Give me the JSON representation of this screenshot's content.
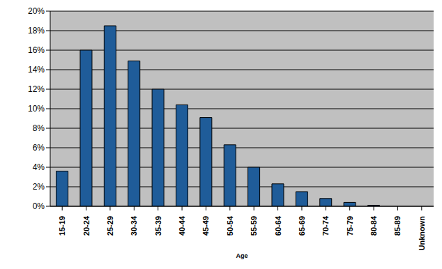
{
  "chart_data": {
    "type": "bar",
    "x_label": "Age",
    "categories": [
      "15-19",
      "20-24",
      "25-29",
      "30-34",
      "35-39",
      "40-44",
      "45-49",
      "50-54",
      "55-59",
      "60-64",
      "65-69",
      "70-74",
      "75-79",
      "80-84",
      "85-89",
      "Unknown"
    ],
    "values": [
      3.6,
      16.0,
      18.5,
      14.9,
      12.0,
      10.4,
      9.1,
      6.3,
      4.0,
      2.3,
      1.5,
      0.8,
      0.4,
      0.1,
      0,
      0
    ],
    "color": "#1f5c99",
    "ylim": [
      0,
      20
    ],
    "yticks": [
      {
        "value": 0,
        "label": "0%"
      },
      {
        "value": 2,
        "label": "2%"
      },
      {
        "value": 4,
        "label": "4%"
      },
      {
        "value": 6,
        "label": "6%"
      },
      {
        "value": 8,
        "label": "8%"
      },
      {
        "value": 10,
        "label": "10%"
      },
      {
        "value": 12,
        "label": "12%"
      },
      {
        "value": 14,
        "label": "14%"
      },
      {
        "value": 16,
        "label": "16%"
      },
      {
        "value": 18,
        "label": "18%"
      },
      {
        "value": 20,
        "label": "20%"
      }
    ],
    "grid": true
  }
}
